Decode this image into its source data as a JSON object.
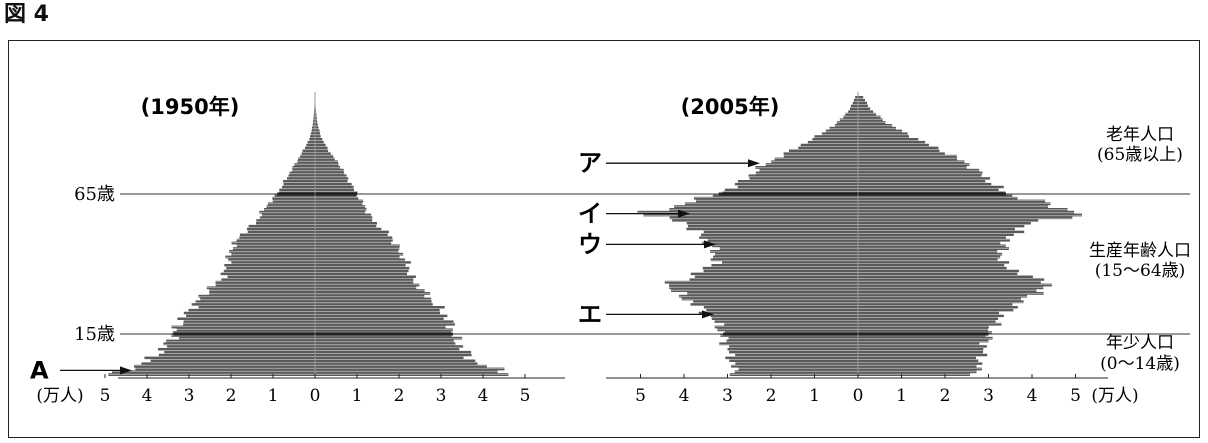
{
  "figure_label": "図 4",
  "chart_data": [
    {
      "type": "bar",
      "orientation": "horizontal-population-pyramid",
      "title": "(1950年)",
      "x_unit": "(万人)",
      "x_ticks_left": [
        "5",
        "4",
        "3",
        "2",
        "1",
        "0"
      ],
      "x_ticks_right": [
        "1",
        "2",
        "3",
        "4",
        "5"
      ],
      "age_lines": [
        {
          "label": "65歳",
          "age": 65
        },
        {
          "label": "15歳",
          "age": 15
        }
      ],
      "age_range": [
        0,
        100
      ],
      "xlim": [
        -5,
        5
      ],
      "profile_ages": [
        0,
        2,
        5,
        10,
        14,
        20,
        25,
        30,
        35,
        40,
        45,
        50,
        55,
        60,
        65,
        70,
        75,
        80,
        85,
        90,
        95,
        100
      ],
      "male": [
        4.9,
        4.6,
        4.0,
        3.6,
        3.4,
        3.2,
        2.9,
        2.6,
        2.2,
        2.1,
        2.0,
        1.8,
        1.4,
        1.2,
        0.9,
        0.7,
        0.5,
        0.3,
        0.12,
        0.05,
        0.02,
        0.0
      ],
      "female": [
        4.8,
        4.4,
        3.8,
        3.5,
        3.3,
        3.2,
        2.9,
        2.6,
        2.3,
        2.2,
        2.0,
        1.8,
        1.4,
        1.2,
        1.0,
        0.8,
        0.6,
        0.35,
        0.15,
        0.06,
        0.02,
        0.0
      ],
      "annotations": [
        {
          "label": "A",
          "target_age": 2
        }
      ]
    },
    {
      "type": "bar",
      "orientation": "horizontal-population-pyramid",
      "title": "(2005年)",
      "x_unit": "(万人)",
      "x_ticks_left": [
        "5",
        "4",
        "3",
        "2",
        "1",
        "0"
      ],
      "x_ticks_right": [
        "1",
        "2",
        "3",
        "4",
        "5"
      ],
      "age_range": [
        0,
        100
      ],
      "xlim": [
        -5,
        5
      ],
      "profile_ages": [
        0,
        5,
        10,
        14,
        15,
        20,
        25,
        30,
        33,
        35,
        40,
        45,
        50,
        55,
        58,
        60,
        62,
        65,
        70,
        75,
        80,
        85,
        90,
        95,
        100
      ],
      "male": [
        2.8,
        2.9,
        3.0,
        3.1,
        3.1,
        3.3,
        3.7,
        4.2,
        4.4,
        3.9,
        3.3,
        3.3,
        3.6,
        4.0,
        5.1,
        4.2,
        4.0,
        3.2,
        2.6,
        2.2,
        1.6,
        1.0,
        0.5,
        0.2,
        0.05
      ],
      "female": [
        2.7,
        2.8,
        2.9,
        3.0,
        3.0,
        3.2,
        3.6,
        4.1,
        4.5,
        4.0,
        3.3,
        3.3,
        3.5,
        4.0,
        5.4,
        4.5,
        4.3,
        3.4,
        3.0,
        2.6,
        2.0,
        1.3,
        0.7,
        0.3,
        0.1
      ],
      "annotations": [
        {
          "label": "ア",
          "target_age": 76
        },
        {
          "label": "イ",
          "target_age": 58
        },
        {
          "label": "ウ",
          "target_age": 47
        },
        {
          "label": "エ",
          "target_age": 22
        }
      ],
      "group_labels": [
        {
          "line1": "老年人口",
          "line2": "(65歳以上)"
        },
        {
          "line1": "生産年齢人口",
          "line2": "(15〜64歳)"
        },
        {
          "line1": "年少人口",
          "line2": "(0〜14歳)"
        }
      ]
    }
  ]
}
